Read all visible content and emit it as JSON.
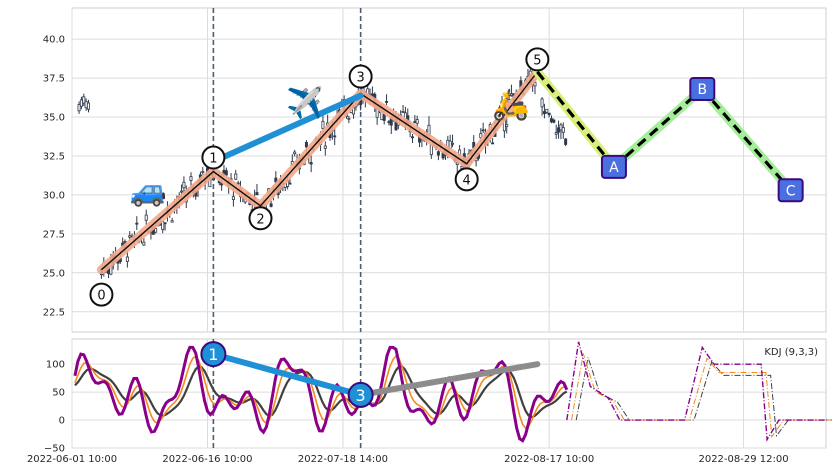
{
  "chart_data": [
    {
      "type": "candlestick",
      "ylim": [
        21.2,
        42.0
      ],
      "yticks": [
        "22.5",
        "25.0",
        "27.5",
        "30.0",
        "32.5",
        "35.0",
        "37.5",
        "40.0"
      ],
      "ytick_values": [
        22.5,
        25.0,
        27.5,
        30.0,
        32.5,
        35.0,
        37.5,
        40.0
      ],
      "grid": true,
      "vertical_markers_x": [
        24.0,
        49.0
      ],
      "wave_points": [
        {
          "label": "0",
          "x": 5.0,
          "y": 25.2,
          "label_y": 23.6
        },
        {
          "label": "1",
          "x": 24.0,
          "y": 31.5,
          "label_y": 32.4
        },
        {
          "label": "2",
          "x": 32.0,
          "y": 29.3,
          "label_y": 28.5
        },
        {
          "label": "3",
          "x": 49.0,
          "y": 36.5,
          "label_y": 37.6
        },
        {
          "label": "4",
          "x": 67.0,
          "y": 32.0,
          "label_y": 31.0
        },
        {
          "label": "5",
          "x": 79.0,
          "y": 37.9,
          "label_y": 38.7
        }
      ],
      "projection_points": [
        {
          "label": "",
          "x": 79.0,
          "y": 37.9
        },
        {
          "label": "A",
          "x": 92.0,
          "y": 31.8
        },
        {
          "label": "B",
          "x": 107.0,
          "y": 36.8
        },
        {
          "label": "C",
          "x": 122.0,
          "y": 30.3
        }
      ],
      "emoji_markers": [
        {
          "icon": "car",
          "glyph": "🚙",
          "x": 13.0,
          "y": 30.2
        },
        {
          "icon": "airplane",
          "glyph": "✈️",
          "x": 39.5,
          "y": 35.8
        },
        {
          "icon": "scooter",
          "glyph": "🛵",
          "x": 74.5,
          "y": 35.7
        }
      ]
    },
    {
      "type": "line",
      "title": "KDJ (9,3,3)",
      "ylim": [
        -50,
        145
      ],
      "yticks": [
        "−50",
        "0",
        "50",
        "100"
      ],
      "ytick_values": [
        -50,
        0,
        50,
        100
      ],
      "grid": true,
      "markers": [
        {
          "label": "1",
          "x": 24.0,
          "y": 118
        },
        {
          "label": "3",
          "x": 49.0,
          "y": 45
        }
      ],
      "trend_gray": {
        "from": [
          49.0,
          45
        ],
        "to": [
          79.0,
          100
        ]
      }
    }
  ],
  "x_axis": {
    "ticks": [
      {
        "x": 0,
        "label": "2022-06-01 10:00"
      },
      {
        "x": 23,
        "label": "2022-06-16 10:00"
      },
      {
        "x": 46,
        "label": "2022-07-18 14:00"
      },
      {
        "x": 81,
        "label": "2022-08-17 10:00"
      },
      {
        "x": 114,
        "label": "2022-08-29 12:00"
      }
    ]
  },
  "colors": {
    "wave_highlight": "#f4a98a",
    "wave_line": "#111111",
    "impulse_blue": "#1f8fd6",
    "abc_box": "#4a6fe0",
    "abc_border": "#3b0a80",
    "proj_leg1": "#d8ef7a",
    "proj_leg2": "#a4ee9a",
    "proj_leg3": "#a4ee9a",
    "k_line": "#f28a1e",
    "d_line": "#404040",
    "j_line": "#8b008b",
    "gray_trend": "#8c8c8c",
    "marker_line": "#4a5d74",
    "candle": "#2e3a4c"
  }
}
